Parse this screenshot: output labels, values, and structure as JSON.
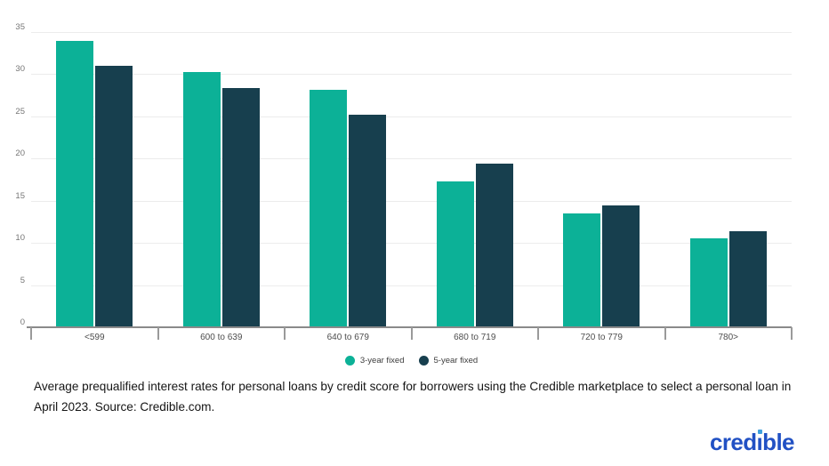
{
  "chart_data": {
    "type": "bar",
    "title": "",
    "xlabel": "",
    "ylabel": "",
    "categories": [
      "<599",
      "600 to 639",
      "640 to 679",
      "680 to 719",
      "720 to 779",
      "780>"
    ],
    "series": [
      {
        "name": "3-year fixed",
        "values": [
          33.9,
          30.3,
          28.2,
          17.3,
          13.5,
          10.5
        ]
      },
      {
        "name": "5-year fixed",
        "values": [
          31.0,
          28.4,
          25.2,
          19.4,
          14.4,
          11.4
        ]
      }
    ],
    "series_colors": [
      "#0cb197",
      "#173f4e"
    ],
    "ylim": [
      0,
      35
    ],
    "yticks": [
      0,
      5,
      10,
      15,
      20,
      25,
      30,
      35
    ],
    "grid": true,
    "legend_position": "bottom"
  },
  "caption": {
    "text": "Average prequalified interest rates for personal loans by credit score for borrowers using the Credible marketplace to select a personal loan in April 2023. Source: Credible.com."
  },
  "logo": {
    "pre": "cred",
    "i": "ı",
    "post": "ble"
  }
}
